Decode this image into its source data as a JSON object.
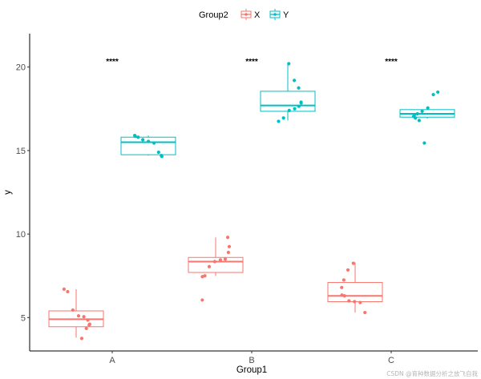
{
  "chart_data": {
    "type": "boxplot",
    "xlabel": "Group1",
    "ylabel": "y",
    "ylim": [
      3,
      22
    ],
    "yticks": [
      5,
      10,
      15,
      20
    ],
    "categories": [
      "A",
      "B",
      "C"
    ],
    "legend": {
      "title": "Group2",
      "position": "top"
    },
    "grid": false,
    "series": [
      {
        "name": "X",
        "color": "#F8766D",
        "boxes": [
          {
            "category": "A",
            "whisker_low": 3.8,
            "q1": 4.45,
            "median": 4.9,
            "q3": 5.4,
            "whisker_high": 6.7,
            "points": [
              3.75,
              4.35,
              4.55,
              4.6,
              4.85,
              5.05,
              5.1,
              5.45,
              6.55,
              6.7
            ]
          },
          {
            "category": "B",
            "whisker_low": 7.5,
            "q1": 7.7,
            "median": 8.35,
            "q3": 8.6,
            "whisker_high": 9.8,
            "points": [
              6.05,
              7.45,
              7.5,
              8.05,
              8.35,
              8.45,
              8.5,
              8.9,
              9.25,
              9.8
            ]
          },
          {
            "category": "C",
            "whisker_low": 5.3,
            "q1": 5.95,
            "median": 6.3,
            "q3": 7.1,
            "whisker_high": 8.3,
            "points": [
              5.3,
              5.9,
              5.95,
              6.0,
              6.3,
              6.35,
              6.8,
              7.25,
              7.85,
              8.25
            ]
          }
        ]
      },
      {
        "name": "Y",
        "color": "#00BFC4",
        "boxes": [
          {
            "category": "A",
            "whisker_low": 14.7,
            "q1": 14.75,
            "median": 15.5,
            "q3": 15.8,
            "whisker_high": 15.9,
            "points": [
              14.65,
              14.7,
              14.9,
              15.45,
              15.55,
              15.65,
              15.8,
              15.85,
              15.9
            ]
          },
          {
            "category": "B",
            "whisker_low": 16.8,
            "q1": 17.35,
            "median": 17.7,
            "q3": 18.55,
            "whisker_high": 20.2,
            "points": [
              16.75,
              16.95,
              17.4,
              17.5,
              17.65,
              17.85,
              17.9,
              18.75,
              19.2,
              20.2
            ]
          },
          {
            "category": "C",
            "whisker_low": 16.9,
            "q1": 17.0,
            "median": 17.2,
            "q3": 17.45,
            "whisker_high": 17.5,
            "points": [
              15.45,
              16.8,
              16.95,
              17.05,
              17.15,
              17.2,
              17.35,
              17.55,
              18.35,
              18.5
            ]
          }
        ]
      }
    ],
    "annotations": [
      {
        "category": "A",
        "text": "****",
        "y": 20.35
      },
      {
        "category": "B",
        "text": "****",
        "y": 20.35
      },
      {
        "category": "C",
        "text": "****",
        "y": 20.35
      }
    ]
  },
  "watermark": "CSDN @育种数据分析之放飞自我"
}
